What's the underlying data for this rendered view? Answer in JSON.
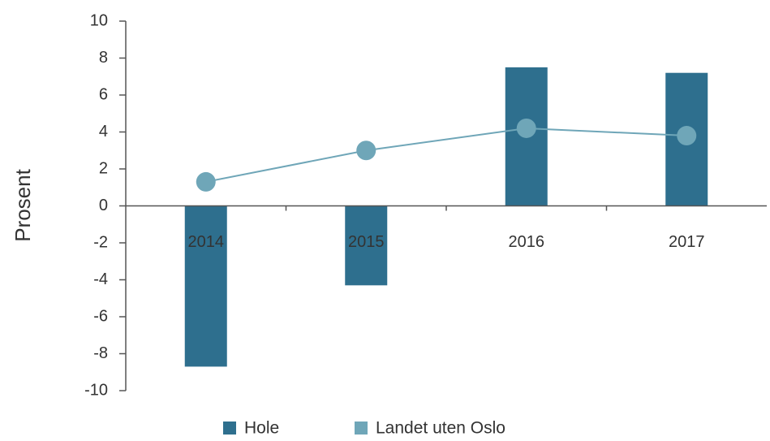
{
  "chart_data": {
    "type": "bar",
    "categories": [
      "2014",
      "2015",
      "2016",
      "2017"
    ],
    "series": [
      {
        "name": "Hole",
        "type": "bar",
        "color": "#2e6f8e",
        "values": [
          -8.7,
          -4.3,
          7.5,
          7.2
        ]
      },
      {
        "name": "Landet uten Oslo",
        "type": "line",
        "color": "#6fa6b8",
        "values": [
          1.3,
          3.0,
          4.2,
          3.8
        ]
      }
    ],
    "y_label": "Prosent",
    "ylim": [
      -10,
      10
    ],
    "yticks": [
      -10,
      -8,
      -6,
      -4,
      -2,
      0,
      2,
      4,
      6,
      8,
      10
    ],
    "legend": "bottom"
  }
}
